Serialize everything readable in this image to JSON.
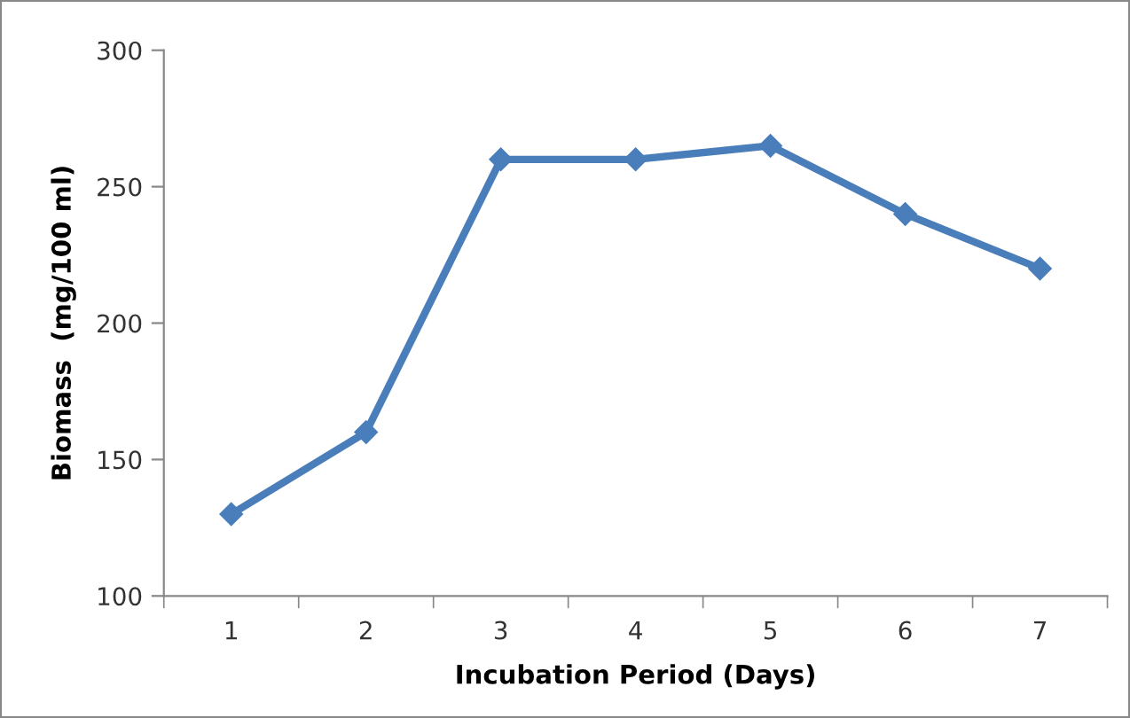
{
  "chart_data": {
    "type": "line",
    "xlabel": "Incubation Period (Days)",
    "ylabel": "Biomass  (mg/100 ml)",
    "categories": [
      "1",
      "2",
      "3",
      "4",
      "5",
      "6",
      "7"
    ],
    "series": [
      {
        "color": "#4a7ebb",
        "values": [
          130,
          160,
          260,
          260,
          265,
          240,
          220
        ]
      }
    ],
    "ylim": [
      100,
      300
    ],
    "yticks": [
      100,
      150,
      200,
      250,
      300
    ],
    "marker": "diamond",
    "line_style": "solid",
    "grid": false,
    "legend": false
  }
}
